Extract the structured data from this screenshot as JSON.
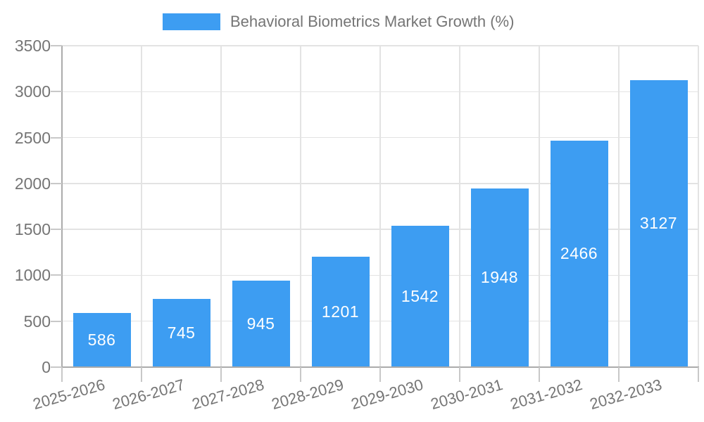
{
  "legend": {
    "label": "Behavioral Biometrics Market Growth (%)"
  },
  "chart_data": {
    "type": "bar",
    "title": "",
    "series_name": "Behavioral Biometrics Market Growth (%)",
    "categories": [
      "2025-2026",
      "2026-2027",
      "2027-2028",
      "2028-2029",
      "2029-2030",
      "2030-2031",
      "2031-2032",
      "2032-2033"
    ],
    "values": [
      586,
      745,
      945,
      1201,
      1542,
      1948,
      2466,
      3127
    ],
    "value_labels": [
      "586",
      "745",
      "945",
      "1201",
      "1542",
      "1948",
      "2466",
      "3127"
    ],
    "xlabel": "",
    "ylabel": "",
    "ylim": [
      0,
      3500
    ],
    "ytick_interval": 500,
    "ytick_labels": [
      "0",
      "500",
      "1000",
      "1500",
      "2000",
      "2500",
      "3000",
      "3500"
    ],
    "grid": true,
    "legend_position": "top-center",
    "value_label_position": "inside-center",
    "colors": {
      "bar": "#3D9DF2",
      "axis_text": "#757575",
      "value_label": "#ffffff",
      "grid_line": "#e3e3e3",
      "axis_line": "#ababab",
      "tick_line": "#c8c8c8",
      "background": "#ffffff"
    }
  }
}
